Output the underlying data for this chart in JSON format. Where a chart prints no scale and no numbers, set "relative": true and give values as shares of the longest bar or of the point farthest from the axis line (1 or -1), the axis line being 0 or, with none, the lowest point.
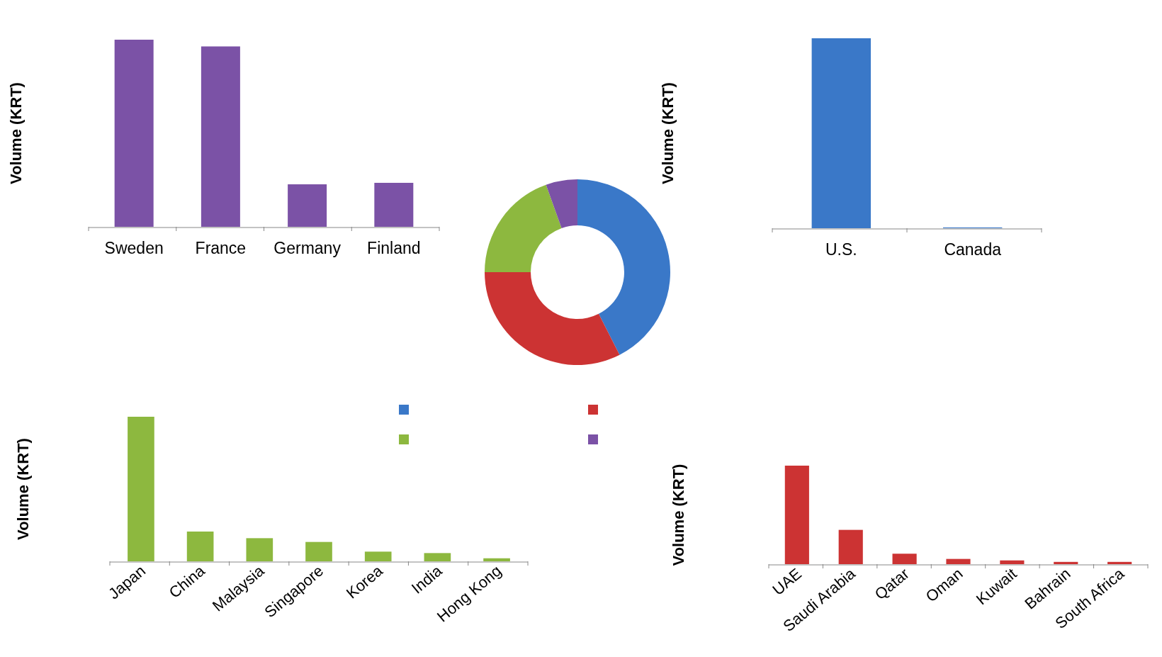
{
  "chart_data": [
    {
      "type": "bar",
      "ylabel": "Volume (KRT)",
      "relative": true,
      "categories": [
        "Sweden",
        "France",
        "Germany",
        "Finland"
      ],
      "values": [
        1,
        0.964,
        0.227,
        0.235
      ],
      "color": "#7b52a6"
    },
    {
      "type": "bar",
      "ylabel": "Volume (KRT)",
      "relative": true,
      "categories": [
        "U.S.",
        "Canada"
      ],
      "values": [
        1,
        0.004
      ],
      "color": "#3a78c8"
    },
    {
      "type": "donut",
      "categories": [
        null,
        null,
        null,
        null
      ],
      "values": [
        42.5,
        32.5,
        19.5,
        5.5
      ],
      "colors": [
        "#3a78c8",
        "#cc3333",
        "#8db83f",
        "#7b52a6"
      ]
    },
    {
      "type": "bar",
      "ylabel": "Volume (KRT)",
      "relative": true,
      "categories": [
        "Japan",
        "China",
        "Malaysia",
        "Singapore",
        "Korea",
        "India",
        "Hong Kong"
      ],
      "values": [
        1,
        0.206,
        0.16,
        0.134,
        0.067,
        0.057,
        0.021
      ],
      "color": "#8db83f"
    },
    {
      "type": "bar",
      "ylabel": "Volume (KRT)",
      "relative": true,
      "categories": [
        "UAE",
        "Saudi Arabia",
        "Qatar",
        "Oman",
        "Kuwait",
        "Bahrain",
        "South Africa"
      ],
      "values": [
        1,
        0.348,
        0.106,
        0.053,
        0.038,
        0.023,
        0.023
      ],
      "color": "#cc3333"
    }
  ]
}
